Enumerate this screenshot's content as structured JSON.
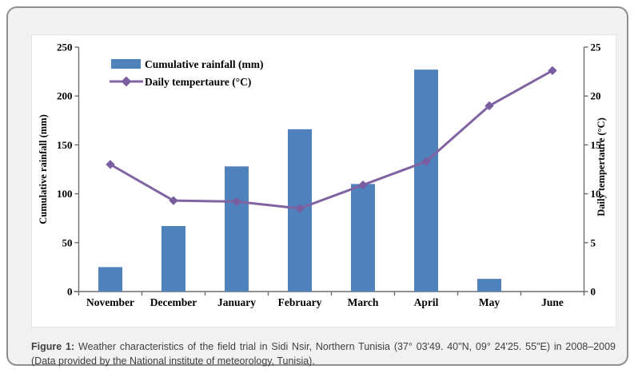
{
  "chart_data": {
    "type": "combo-bar-line",
    "categories": [
      "November",
      "December",
      "January",
      "February",
      "March",
      "April",
      "May",
      "June"
    ],
    "series": [
      {
        "name": "Cumulative rainfall (mm)",
        "type": "bar",
        "axis": "left",
        "color": "#4f81bd",
        "values": [
          25,
          67,
          128,
          166,
          110,
          227,
          13,
          0
        ]
      },
      {
        "name": "Daily tempertaure (°C)",
        "type": "line",
        "axis": "right",
        "color": "#8064a2",
        "marker_color": "#7a5da0",
        "marker": "diamond",
        "values": [
          13.0,
          9.3,
          9.2,
          8.5,
          10.9,
          13.3,
          19.0,
          22.6
        ]
      }
    ],
    "left_axis": {
      "label": "Cumulative rainfall (mm)",
      "range": [
        0,
        250
      ],
      "ticks": [
        0,
        50,
        100,
        150,
        200,
        250
      ]
    },
    "right_axis": {
      "label": "Daily tempertaure (°C)",
      "range": [
        0,
        25
      ],
      "ticks": [
        0,
        5,
        10,
        15,
        20,
        25
      ]
    },
    "legend": {
      "position": "top-left-inside",
      "entries": [
        "Cumulative rainfall (mm)",
        "Daily tempertaure (°C)"
      ]
    },
    "grid": false,
    "axis_line_color": "#6e6e6e"
  },
  "caption": {
    "prefix": "Figure 1:",
    "text": " Weather characteristics of the field trial in Sidi Nsir, Northern Tunisia (37° 03'49. 40\"N, 09° 24'25. 55\"E) in 2008–2009 (Data provided by the National institute of meteorology, Tunisia)."
  }
}
